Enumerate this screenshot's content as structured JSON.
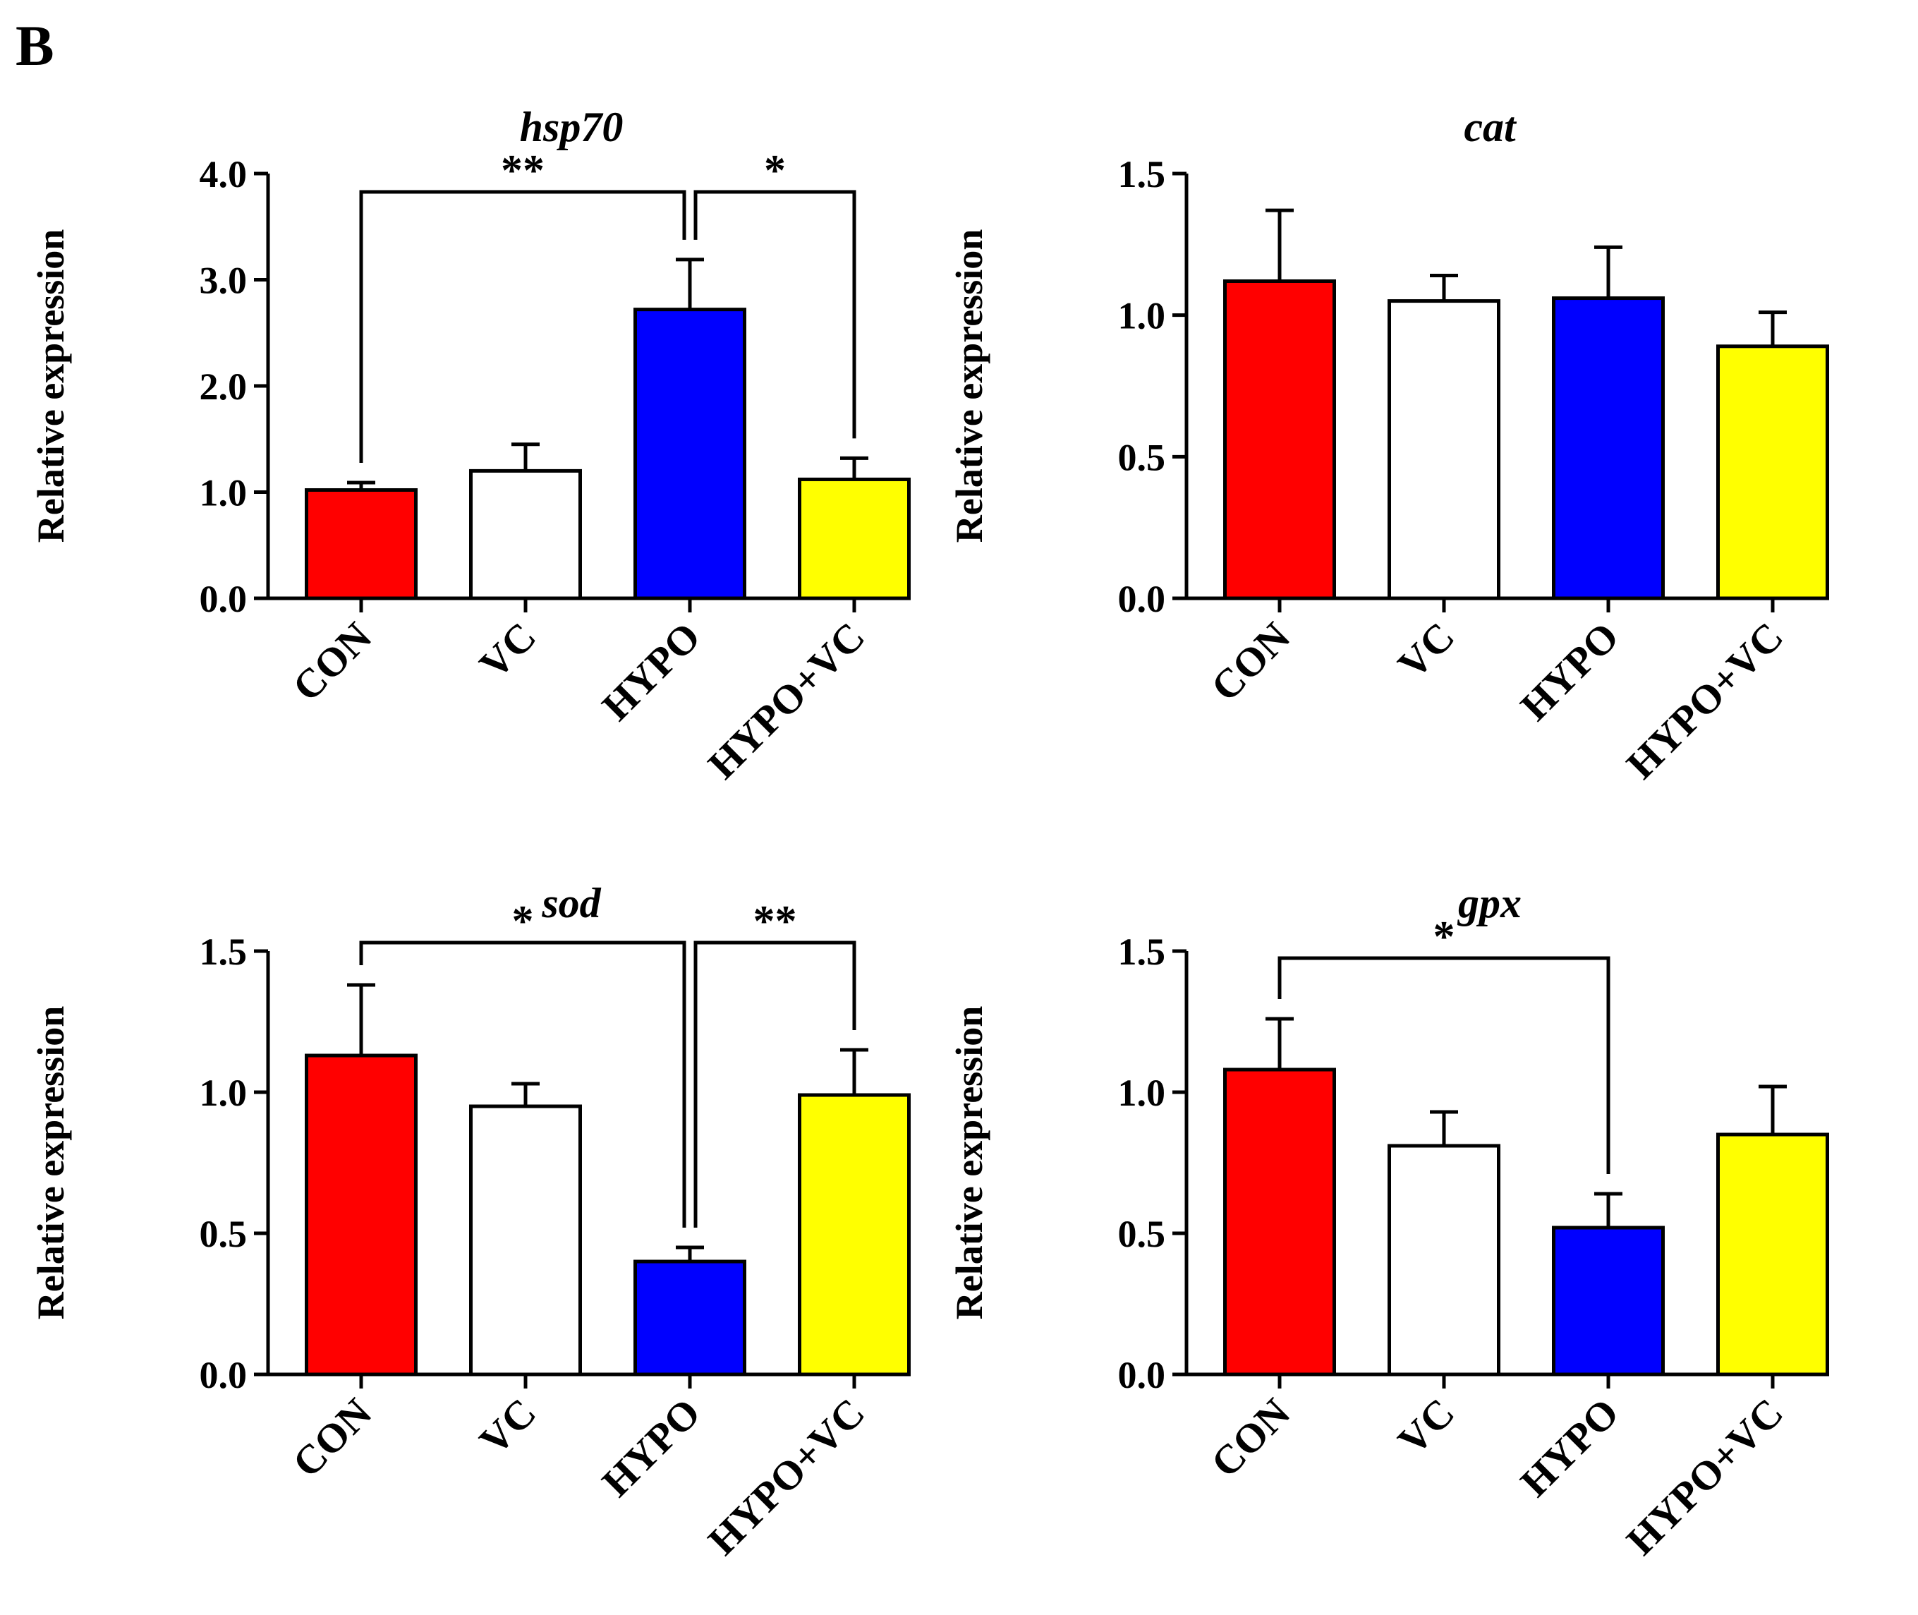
{
  "panel_label": "B",
  "colors": {
    "CON": "#ff0000",
    "VC": "#ffffff",
    "HYPO": "#0000ff",
    "HYPO+VC": "#ffff00",
    "axis": "#000000"
  },
  "chart_data": [
    {
      "type": "bar",
      "title": "hsp70",
      "ylabel": "Relative expression",
      "xlabel": "",
      "categories": [
        "CON",
        "VC",
        "HYPO",
        "HYPO+VC"
      ],
      "values": [
        1.02,
        1.2,
        2.72,
        1.12
      ],
      "errors": [
        0.07,
        0.25,
        0.47,
        0.2
      ],
      "ylim": [
        0,
        4.0
      ],
      "yticks": [
        "0.0",
        "1.0",
        "2.0",
        "3.0",
        "4.0"
      ],
      "significance": [
        {
          "from": "CON",
          "to": "HYPO",
          "label": "**"
        },
        {
          "from": "HYPO",
          "to": "HYPO+VC",
          "label": "*"
        }
      ]
    },
    {
      "type": "bar",
      "title": "cat",
      "ylabel": "Relative expression",
      "xlabel": "",
      "categories": [
        "CON",
        "VC",
        "HYPO",
        "HYPO+VC"
      ],
      "values": [
        1.12,
        1.05,
        1.06,
        0.89
      ],
      "errors": [
        0.25,
        0.09,
        0.18,
        0.12
      ],
      "ylim": [
        0,
        1.5
      ],
      "yticks": [
        "0.0",
        "0.5",
        "1.0",
        "1.5"
      ],
      "significance": []
    },
    {
      "type": "bar",
      "title": "sod",
      "ylabel": "Relative expression",
      "xlabel": "",
      "categories": [
        "CON",
        "VC",
        "HYPO",
        "HYPO+VC"
      ],
      "values": [
        1.13,
        0.95,
        0.4,
        0.99
      ],
      "errors": [
        0.25,
        0.08,
        0.05,
        0.16
      ],
      "ylim": [
        0,
        1.5
      ],
      "yticks": [
        "0.0",
        "0.5",
        "1.0",
        "1.5"
      ],
      "significance": [
        {
          "from": "CON",
          "to": "HYPO",
          "label": "*"
        },
        {
          "from": "HYPO",
          "to": "HYPO+VC",
          "label": "**"
        }
      ]
    },
    {
      "type": "bar",
      "title": "gpx",
      "ylabel": "Relative expression",
      "xlabel": "",
      "categories": [
        "CON",
        "VC",
        "HYPO",
        "HYPO+VC"
      ],
      "values": [
        1.08,
        0.81,
        0.52,
        0.85
      ],
      "errors": [
        0.18,
        0.12,
        0.12,
        0.17
      ],
      "ylim": [
        0,
        1.5
      ],
      "yticks": [
        "0.0",
        "0.5",
        "1.0",
        "1.5"
      ],
      "significance": [
        {
          "from": "CON",
          "to": "HYPO",
          "label": "*"
        }
      ]
    }
  ]
}
